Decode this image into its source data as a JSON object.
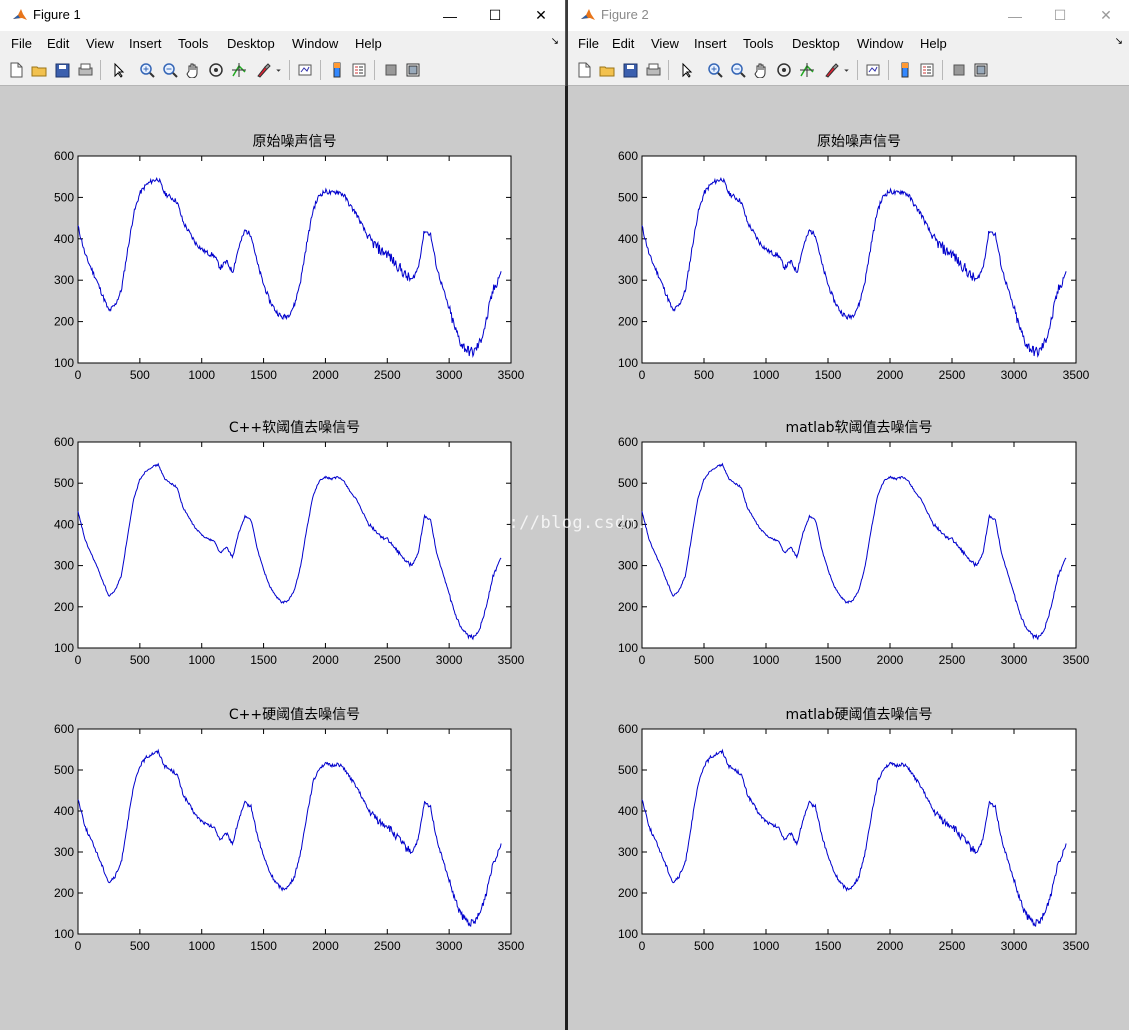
{
  "windows": [
    {
      "title": "Figure 1",
      "menu": [
        "File",
        "Edit",
        "View",
        "Insert",
        "Tools",
        "Desktop",
        "Window",
        "Help"
      ],
      "controls": {
        "minimize": "—",
        "maximize": "☐",
        "close": "✕"
      },
      "axes": [
        {
          "title": "原始噪声信号",
          "noise": 1.0
        },
        {
          "title": "C++软阈值去噪信号",
          "noise": 0.35
        },
        {
          "title": "C++硬阈值去噪信号",
          "noise": 0.7
        }
      ]
    },
    {
      "title": "Figure 2",
      "menu": [
        "File",
        "Edit",
        "View",
        "Insert",
        "Tools",
        "Desktop",
        "Window",
        "Help"
      ],
      "controls": {
        "minimize": "—",
        "maximize": "☐",
        "close": "✕"
      },
      "axes": [
        {
          "title": "原始噪声信号",
          "noise": 1.0
        },
        {
          "title": "matlab软阈值去噪信号",
          "noise": 0.35
        },
        {
          "title": "matlab硬阈值去噪信号",
          "noise": 0.7
        }
      ]
    }
  ],
  "watermark": "http://blog.csdn.net/",
  "colors": {
    "line": "#0000cc",
    "figure_bg": "#cbcbcb",
    "axes_bg": "#ffffff"
  },
  "toolbar_icons": [
    "new-file-icon",
    "open-file-icon",
    "save-icon",
    "print-icon",
    "pointer-icon",
    "zoom-in-icon",
    "zoom-out-icon",
    "pan-hand-icon",
    "rotate-3d-icon",
    "data-cursor-icon",
    "brush-icon",
    "dropdown-arrow-icon",
    "link-plot-icon",
    "colorbar-icon",
    "legend-icon",
    "hide-plot-tools-icon",
    "show-plot-tools-icon"
  ],
  "chart_data": [
    {
      "type": "line",
      "title": "原始噪声信号",
      "xlim": [
        0,
        3500
      ],
      "ylim": [
        100,
        600
      ],
      "xticks": [
        0,
        500,
        1000,
        1500,
        2000,
        2500,
        3000,
        3500
      ],
      "yticks": [
        100,
        200,
        300,
        400,
        500,
        600
      ],
      "x": [
        0,
        60,
        150,
        250,
        300,
        350,
        400,
        450,
        500,
        550,
        600,
        650,
        700,
        750,
        800,
        850,
        900,
        950,
        1000,
        1050,
        1100,
        1150,
        1200,
        1250,
        1300,
        1350,
        1400,
        1450,
        1500,
        1550,
        1600,
        1650,
        1700,
        1750,
        1800,
        1850,
        1900,
        1950,
        2000,
        2050,
        2100,
        2150,
        2200,
        2250,
        2300,
        2350,
        2400,
        2450,
        2500,
        2550,
        2600,
        2650,
        2700,
        2750,
        2800,
        2850,
        2900,
        2950,
        3000,
        3050,
        3100,
        3150,
        3200,
        3250,
        3300,
        3350,
        3420
      ],
      "y": [
        430,
        360,
        300,
        225,
        240,
        275,
        370,
        460,
        510,
        530,
        540,
        545,
        510,
        500,
        490,
        440,
        415,
        390,
        375,
        365,
        360,
        330,
        345,
        320,
        380,
        420,
        410,
        340,
        290,
        250,
        225,
        210,
        215,
        240,
        300,
        390,
        470,
        505,
        515,
        510,
        515,
        505,
        480,
        460,
        430,
        400,
        385,
        370,
        365,
        345,
        330,
        310,
        300,
        330,
        420,
        410,
        330,
        280,
        230,
        180,
        145,
        130,
        125,
        150,
        200,
        270,
        320
      ]
    },
    {
      "type": "line",
      "title": "C++软阈值去噪信号",
      "xlim": [
        0,
        3500
      ],
      "ylim": [
        100,
        600
      ],
      "xticks": [
        0,
        500,
        1000,
        1500,
        2000,
        2500,
        3000,
        3500
      ],
      "yticks": [
        100,
        200,
        300,
        400,
        500,
        600
      ],
      "x": [
        0,
        60,
        150,
        250,
        300,
        350,
        400,
        450,
        500,
        550,
        600,
        650,
        700,
        750,
        800,
        850,
        900,
        950,
        1000,
        1050,
        1100,
        1150,
        1200,
        1250,
        1300,
        1350,
        1400,
        1450,
        1500,
        1550,
        1600,
        1650,
        1700,
        1750,
        1800,
        1850,
        1900,
        1950,
        2000,
        2050,
        2100,
        2150,
        2200,
        2250,
        2300,
        2350,
        2400,
        2450,
        2500,
        2550,
        2600,
        2650,
        2700,
        2750,
        2800,
        2850,
        2900,
        2950,
        3000,
        3050,
        3100,
        3150,
        3200,
        3250,
        3300,
        3350,
        3420
      ],
      "y": [
        430,
        360,
        300,
        225,
        240,
        275,
        370,
        460,
        510,
        530,
        540,
        545,
        510,
        500,
        490,
        440,
        415,
        390,
        375,
        365,
        360,
        330,
        345,
        320,
        380,
        420,
        410,
        340,
        290,
        250,
        225,
        210,
        215,
        240,
        300,
        390,
        470,
        505,
        515,
        510,
        515,
        505,
        480,
        460,
        430,
        400,
        385,
        370,
        365,
        345,
        330,
        310,
        300,
        330,
        420,
        410,
        330,
        280,
        230,
        180,
        145,
        130,
        125,
        150,
        200,
        270,
        320
      ]
    },
    {
      "type": "line",
      "title": "C++硬阈值去噪信号",
      "xlim": [
        0,
        3500
      ],
      "ylim": [
        100,
        600
      ],
      "xticks": [
        0,
        500,
        1000,
        1500,
        2000,
        2500,
        3000,
        3500
      ],
      "yticks": [
        100,
        200,
        300,
        400,
        500,
        600
      ],
      "x": [
        0,
        60,
        150,
        250,
        300,
        350,
        400,
        450,
        500,
        550,
        600,
        650,
        700,
        750,
        800,
        850,
        900,
        950,
        1000,
        1050,
        1100,
        1150,
        1200,
        1250,
        1300,
        1350,
        1400,
        1450,
        1500,
        1550,
        1600,
        1650,
        1700,
        1750,
        1800,
        1850,
        1900,
        1950,
        2000,
        2050,
        2100,
        2150,
        2200,
        2250,
        2300,
        2350,
        2400,
        2450,
        2500,
        2550,
        2600,
        2650,
        2700,
        2750,
        2800,
        2850,
        2900,
        2950,
        3000,
        3050,
        3100,
        3150,
        3200,
        3250,
        3300,
        3350,
        3420
      ],
      "y": [
        430,
        360,
        300,
        225,
        240,
        275,
        370,
        460,
        510,
        530,
        540,
        545,
        510,
        500,
        490,
        440,
        415,
        390,
        375,
        365,
        360,
        330,
        345,
        320,
        380,
        420,
        410,
        340,
        290,
        250,
        225,
        210,
        215,
        240,
        300,
        390,
        470,
        505,
        515,
        510,
        515,
        505,
        480,
        460,
        430,
        400,
        385,
        370,
        365,
        345,
        330,
        310,
        300,
        330,
        420,
        410,
        330,
        280,
        230,
        180,
        145,
        130,
        125,
        150,
        200,
        270,
        320
      ]
    },
    {
      "type": "line",
      "title": "原始噪声信号",
      "xlim": [
        0,
        3500
      ],
      "ylim": [
        100,
        600
      ],
      "xticks": [
        0,
        500,
        1000,
        1500,
        2000,
        2500,
        3000,
        3500
      ],
      "yticks": [
        100,
        200,
        300,
        400,
        500,
        600
      ],
      "x": [
        0,
        60,
        150,
        250,
        300,
        350,
        400,
        450,
        500,
        550,
        600,
        650,
        700,
        750,
        800,
        850,
        900,
        950,
        1000,
        1050,
        1100,
        1150,
        1200,
        1250,
        1300,
        1350,
        1400,
        1450,
        1500,
        1550,
        1600,
        1650,
        1700,
        1750,
        1800,
        1850,
        1900,
        1950,
        2000,
        2050,
        2100,
        2150,
        2200,
        2250,
        2300,
        2350,
        2400,
        2450,
        2500,
        2550,
        2600,
        2650,
        2700,
        2750,
        2800,
        2850,
        2900,
        2950,
        3000,
        3050,
        3100,
        3150,
        3200,
        3250,
        3300,
        3350,
        3420
      ],
      "y": [
        430,
        360,
        300,
        225,
        240,
        275,
        370,
        460,
        510,
        530,
        540,
        545,
        510,
        500,
        490,
        440,
        415,
        390,
        375,
        365,
        360,
        330,
        345,
        320,
        380,
        420,
        410,
        340,
        290,
        250,
        225,
        210,
        215,
        240,
        300,
        390,
        470,
        505,
        515,
        510,
        515,
        505,
        480,
        460,
        430,
        400,
        385,
        370,
        365,
        345,
        330,
        310,
        300,
        330,
        420,
        410,
        330,
        280,
        230,
        180,
        145,
        130,
        125,
        150,
        200,
        270,
        320
      ]
    },
    {
      "type": "line",
      "title": "matlab软阈值去噪信号",
      "xlim": [
        0,
        3500
      ],
      "ylim": [
        100,
        600
      ],
      "xticks": [
        0,
        500,
        1000,
        1500,
        2000,
        2500,
        3000,
        3500
      ],
      "yticks": [
        100,
        200,
        300,
        400,
        500,
        600
      ],
      "x": [
        0,
        60,
        150,
        250,
        300,
        350,
        400,
        450,
        500,
        550,
        600,
        650,
        700,
        750,
        800,
        850,
        900,
        950,
        1000,
        1050,
        1100,
        1150,
        1200,
        1250,
        1300,
        1350,
        1400,
        1450,
        1500,
        1550,
        1600,
        1650,
        1700,
        1750,
        1800,
        1850,
        1900,
        1950,
        2000,
        2050,
        2100,
        2150,
        2200,
        2250,
        2300,
        2350,
        2400,
        2450,
        2500,
        2550,
        2600,
        2650,
        2700,
        2750,
        2800,
        2850,
        2900,
        2950,
        3000,
        3050,
        3100,
        3150,
        3200,
        3250,
        3300,
        3350,
        3420
      ],
      "y": [
        430,
        360,
        300,
        225,
        240,
        275,
        370,
        460,
        510,
        530,
        540,
        545,
        510,
        500,
        490,
        440,
        415,
        390,
        375,
        365,
        360,
        330,
        345,
        320,
        380,
        420,
        410,
        340,
        290,
        250,
        225,
        210,
        215,
        240,
        300,
        390,
        470,
        505,
        515,
        510,
        515,
        505,
        480,
        460,
        430,
        400,
        385,
        370,
        365,
        345,
        330,
        310,
        300,
        330,
        420,
        410,
        330,
        280,
        230,
        180,
        145,
        130,
        125,
        150,
        200,
        270,
        320
      ]
    },
    {
      "type": "line",
      "title": "matlab硬阈值去噪信号",
      "xlim": [
        0,
        3500
      ],
      "ylim": [
        100,
        600
      ],
      "xticks": [
        0,
        500,
        1000,
        1500,
        2000,
        2500,
        3000,
        3500
      ],
      "yticks": [
        100,
        200,
        300,
        400,
        500,
        600
      ],
      "x": [
        0,
        60,
        150,
        250,
        300,
        350,
        400,
        450,
        500,
        550,
        600,
        650,
        700,
        750,
        800,
        850,
        900,
        950,
        1000,
        1050,
        1100,
        1150,
        1200,
        1250,
        1300,
        1350,
        1400,
        1450,
        1500,
        1550,
        1600,
        1650,
        1700,
        1750,
        1800,
        1850,
        1900,
        1950,
        2000,
        2050,
        2100,
        2150,
        2200,
        2250,
        2300,
        2350,
        2400,
        2450,
        2500,
        2550,
        2600,
        2650,
        2700,
        2750,
        2800,
        2850,
        2900,
        2950,
        3000,
        3050,
        3100,
        3150,
        3200,
        3250,
        3300,
        3350,
        3420
      ],
      "y": [
        430,
        360,
        300,
        225,
        240,
        275,
        370,
        460,
        510,
        530,
        540,
        545,
        510,
        500,
        490,
        440,
        415,
        390,
        375,
        365,
        360,
        330,
        345,
        320,
        380,
        420,
        410,
        340,
        290,
        250,
        225,
        210,
        215,
        240,
        300,
        390,
        470,
        505,
        515,
        510,
        515,
        505,
        480,
        460,
        430,
        400,
        385,
        370,
        365,
        345,
        330,
        310,
        300,
        330,
        420,
        410,
        330,
        280,
        230,
        180,
        145,
        130,
        125,
        150,
        200,
        270,
        320
      ]
    }
  ]
}
